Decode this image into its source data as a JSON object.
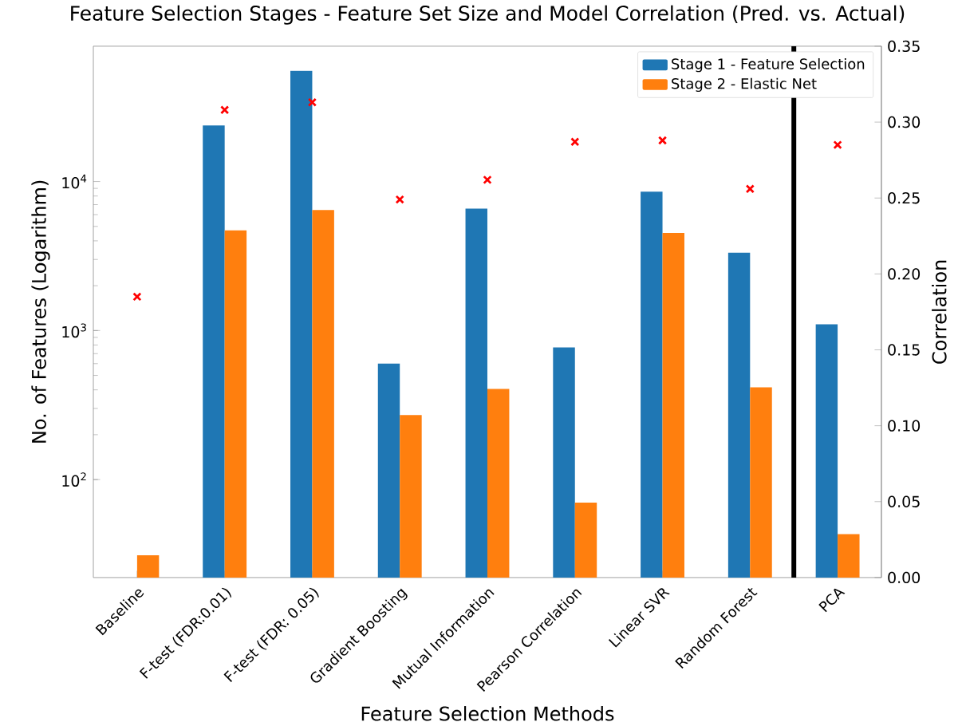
{
  "chart_data": {
    "type": "bar",
    "title": "Feature Selection Stages - Feature Set Size and Model Correlation (Pred. vs. Actual)",
    "xlabel": "Feature Selection Methods",
    "ylabel": "No. of Features (Logarithm)",
    "y2label": "Correlation",
    "categories": [
      "Baseline",
      "F-test (FDR:0.01)",
      "F-test (FDR: 0.05)",
      "Gradient Boosting",
      "Mutual Information",
      "Pearson Correlation",
      "Linear SVR",
      "Random Forest",
      "PCA"
    ],
    "series": [
      {
        "name": "Stage 1 - Feature Selection",
        "color": "#1f77b4",
        "values": [
          null,
          23800,
          55300,
          600,
          6580,
          770,
          8550,
          3330,
          1100
        ]
      },
      {
        "name": "Stage 2 - Elastic Net",
        "color": "#ff7f0e",
        "values": [
          31,
          4700,
          6440,
          271,
          406,
          70,
          4520,
          416,
          43
        ]
      },
      {
        "type": "scatter",
        "axis": "y2",
        "color": "#ff0000",
        "marker": "cross",
        "values": [
          0.185,
          0.308,
          0.313,
          0.249,
          0.262,
          0.287,
          0.288,
          0.256,
          0.285
        ]
      }
    ],
    "log": "y",
    "ylim": [
      22,
      81000
    ],
    "yticks": [
      {
        "value": 100,
        "label": "10$^{2}$"
      },
      {
        "value": 1000,
        "label": "10$^{3}$"
      },
      {
        "value": 10000,
        "label": "10$^{4}$"
      }
    ],
    "y2lim": [
      0,
      0.35
    ],
    "y2ticks": [
      {
        "value": 0,
        "label": "0.00"
      },
      {
        "value": 0.05,
        "label": "0.05"
      },
      {
        "value": 0.1,
        "label": "0.10"
      },
      {
        "value": 0.15,
        "label": "0.15"
      },
      {
        "value": 0.2,
        "label": "0.20"
      },
      {
        "value": 0.25,
        "label": "0.25"
      },
      {
        "value": 0.3,
        "label": "0.30"
      },
      {
        "value": 0.35,
        "label": "0.35"
      }
    ],
    "legend": "top right"
  }
}
